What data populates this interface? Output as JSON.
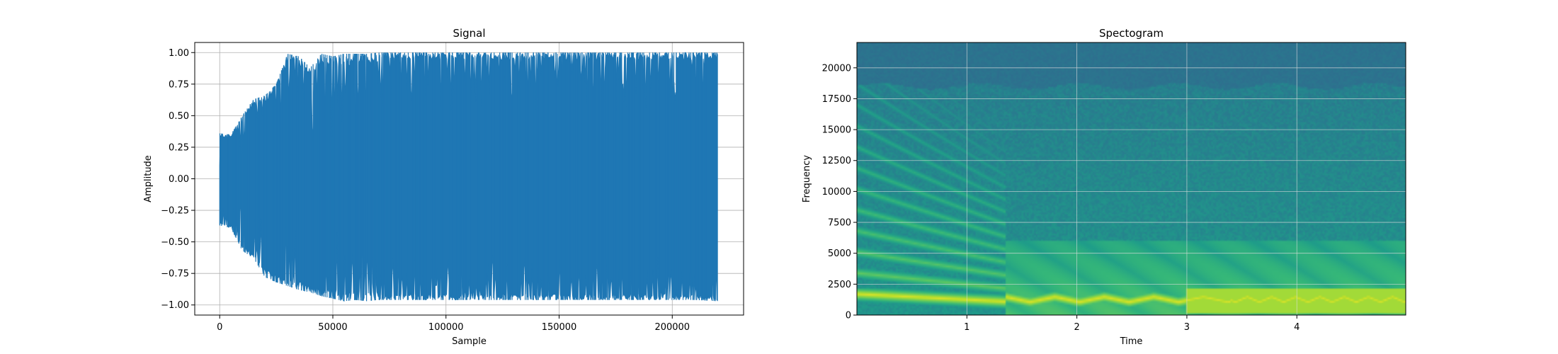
{
  "chart_data": [
    {
      "type": "line",
      "title": "Signal",
      "xlabel": "Sample",
      "ylabel": "Amplitude",
      "xlim": [
        -11025,
        231525
      ],
      "ylim": [
        -1.08,
        1.08
      ],
      "x_ticks": [
        0,
        50000,
        100000,
        150000,
        200000
      ],
      "x_tick_labels": [
        "0",
        "50000",
        "100000",
        "150000",
        "200000"
      ],
      "y_ticks": [
        -1.0,
        -0.75,
        -0.5,
        -0.25,
        0.0,
        0.25,
        0.5,
        0.75,
        1.0
      ],
      "y_tick_labels": [
        "−1.00",
        "−0.75",
        "−0.50",
        "−0.25",
        "0.00",
        "0.25",
        "0.50",
        "0.75",
        "1.00"
      ],
      "grid": true,
      "color": "#1f77b4",
      "series": [
        {
          "x": [
            0,
            5000,
            10000,
            15000,
            20000,
            25000,
            30000,
            35000,
            40000,
            45000,
            50000,
            55000,
            60000,
            65000,
            70000,
            80000,
            90000,
            100000,
            110000,
            120000,
            130000,
            140000,
            150000,
            160000,
            170000,
            180000,
            190000,
            200000,
            210000,
            220000
          ],
          "upper": [
            0.36,
            0.35,
            0.5,
            0.63,
            0.66,
            0.75,
            0.99,
            0.97,
            0.88,
            0.99,
            0.97,
            0.99,
            0.99,
            0.99,
            1.0,
            1.0,
            1.0,
            1.0,
            1.0,
            1.0,
            1.0,
            1.0,
            1.0,
            1.0,
            1.0,
            1.0,
            1.0,
            1.0,
            1.0,
            1.0
          ],
          "lower": [
            -0.37,
            -0.39,
            -0.57,
            -0.63,
            -0.78,
            -0.82,
            -0.85,
            -0.88,
            -0.9,
            -0.93,
            -0.95,
            -0.97,
            -0.96,
            -0.97,
            -0.96,
            -0.96,
            -0.96,
            -0.96,
            -0.96,
            -0.96,
            -0.96,
            -0.96,
            -0.96,
            -0.96,
            -0.96,
            -0.96,
            -0.96,
            -0.96,
            -0.96,
            -0.97
          ]
        }
      ]
    },
    {
      "type": "heatmap",
      "title": "Spectogram",
      "xlabel": "Time",
      "ylabel": "Frequency",
      "xlim": [
        0.0,
        4.99
      ],
      "ylim": [
        0,
        22050
      ],
      "x_ticks": [
        1,
        2,
        3,
        4
      ],
      "x_tick_labels": [
        "1",
        "2",
        "3",
        "4"
      ],
      "y_ticks": [
        0,
        2500,
        5000,
        7500,
        10000,
        12500,
        15000,
        17500,
        20000
      ],
      "y_tick_labels": [
        "0",
        "2500",
        "5000",
        "7500",
        "10000",
        "12500",
        "15000",
        "17500",
        "20000"
      ],
      "grid": true,
      "colormap": "viridis",
      "features": {
        "cutoff_frequency": 18500,
        "transition_time": 1.35,
        "fundamental_frequency_band": [
          800,
          1800
        ]
      }
    }
  ]
}
